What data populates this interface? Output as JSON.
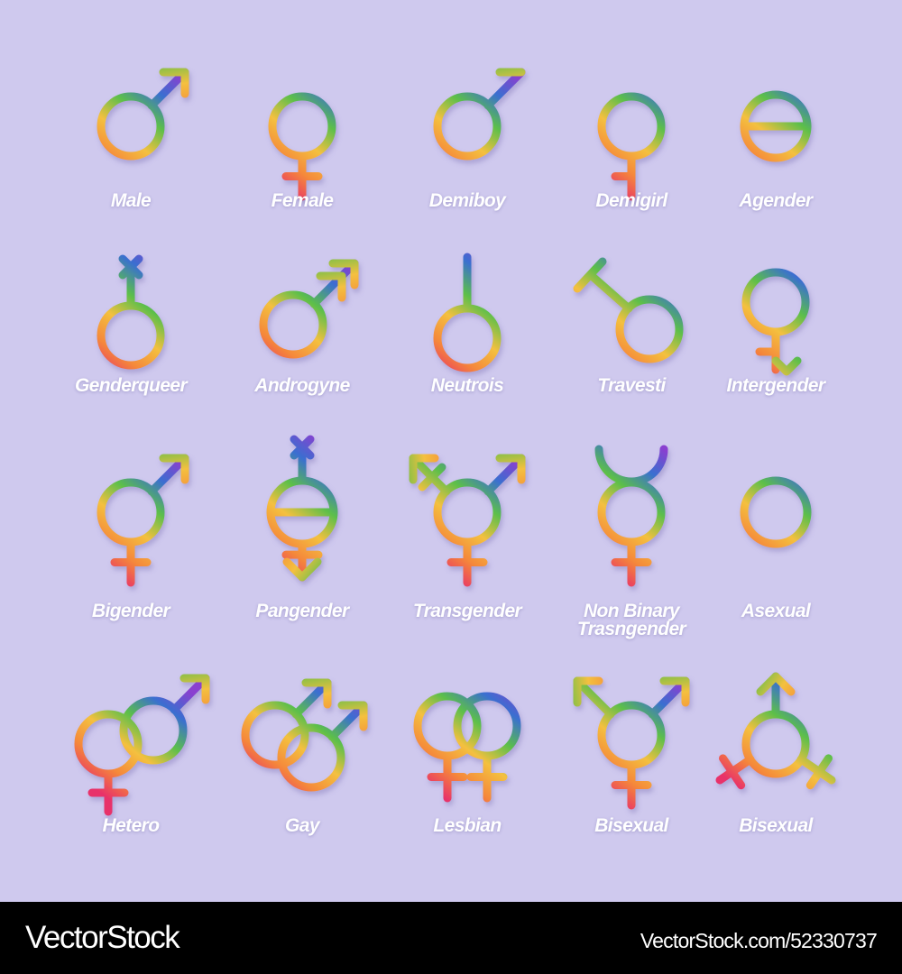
{
  "background_color": "#cfc9ee",
  "gradient_colors": [
    "#e8306a",
    "#f5883a",
    "#f4c03f",
    "#5cbf4a",
    "#3a6fd0",
    "#8a3fd0"
  ],
  "symbols": [
    {
      "label": "Male",
      "icon": "male"
    },
    {
      "label": "Female",
      "icon": "female"
    },
    {
      "label": "Demiboy",
      "icon": "demiboy"
    },
    {
      "label": "Demigirl",
      "icon": "demigirl"
    },
    {
      "label": "Agender",
      "icon": "agender"
    },
    {
      "label": "Genderqueer",
      "icon": "genderqueer"
    },
    {
      "label": "Androgyne",
      "icon": "androgyne"
    },
    {
      "label": "Neutrois",
      "icon": "neutrois"
    },
    {
      "label": "Travesti",
      "icon": "travesti"
    },
    {
      "label": "Intergender",
      "icon": "intergender"
    },
    {
      "label": "Bigender",
      "icon": "bigender"
    },
    {
      "label": "Pangender",
      "icon": "pangender"
    },
    {
      "label": "Transgender",
      "icon": "transgender"
    },
    {
      "label": "Non Binary\nTrasngender",
      "icon": "nonbinary-transgender"
    },
    {
      "label": "Asexual",
      "icon": "asexual"
    },
    {
      "label": "Hetero",
      "icon": "hetero"
    },
    {
      "label": "Gay",
      "icon": "gay"
    },
    {
      "label": "Lesbian",
      "icon": "lesbian"
    },
    {
      "label": "Bisexual",
      "icon": "bisexual"
    },
    {
      "label": "Bisexual",
      "icon": "bisexual-alt"
    }
  ],
  "footer": {
    "brand": "VectorStock",
    "reference": "VectorStock.com/52330737"
  }
}
